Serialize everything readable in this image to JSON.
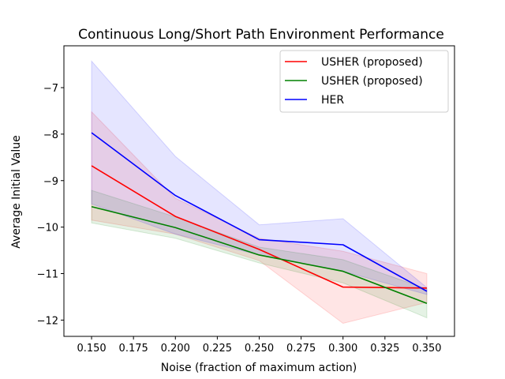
{
  "chart_data": {
    "type": "line",
    "title": "Continuous Long/Short Path Environment Performance",
    "xlabel": "Noise (fraction of maximum action)",
    "ylabel": "Average Initial Value",
    "xlim": [
      0.1335,
      0.3665
    ],
    "ylim": [
      -12.35,
      -6.1
    ],
    "xticks": [
      0.15,
      0.175,
      0.2,
      0.225,
      0.25,
      0.275,
      0.3,
      0.325,
      0.35
    ],
    "xtick_labels": [
      "0.150",
      "0.175",
      "0.200",
      "0.225",
      "0.250",
      "0.275",
      "0.300",
      "0.325",
      "0.350"
    ],
    "yticks": [
      -12,
      -11,
      -10,
      -9,
      -8,
      -7
    ],
    "ytick_labels": [
      "−12",
      "−11",
      "−10",
      "−9",
      "−8",
      "−7"
    ],
    "grid": false,
    "legend_position": "top-right",
    "x": [
      0.15,
      0.2,
      0.25,
      0.3,
      0.35
    ],
    "series": [
      {
        "name": "USHER (proposed)",
        "color": "#ff0000",
        "values": [
          -8.68,
          -9.77,
          -10.48,
          -11.29,
          -11.31
        ],
        "lower": [
          -9.85,
          -10.15,
          -10.72,
          -12.07,
          -11.62
        ],
        "upper": [
          -7.52,
          -9.38,
          -10.24,
          -10.52,
          -11.0
        ]
      },
      {
        "name": "USHER (proposed)",
        "color": "#008000",
        "values": [
          -9.56,
          -10.01,
          -10.6,
          -10.95,
          -11.64
        ],
        "lower": [
          -9.91,
          -10.24,
          -10.77,
          -11.2,
          -11.95
        ],
        "upper": [
          -9.21,
          -9.78,
          -10.43,
          -10.7,
          -11.33
        ]
      },
      {
        "name": "HER",
        "color": "#0000ff",
        "values": [
          -7.97,
          -9.32,
          -10.27,
          -10.38,
          -11.38
        ],
        "lower": [
          -9.5,
          -10.15,
          -10.6,
          -10.95,
          -11.45
        ],
        "upper": [
          -6.43,
          -8.48,
          -9.95,
          -9.82,
          -11.3
        ]
      }
    ]
  }
}
